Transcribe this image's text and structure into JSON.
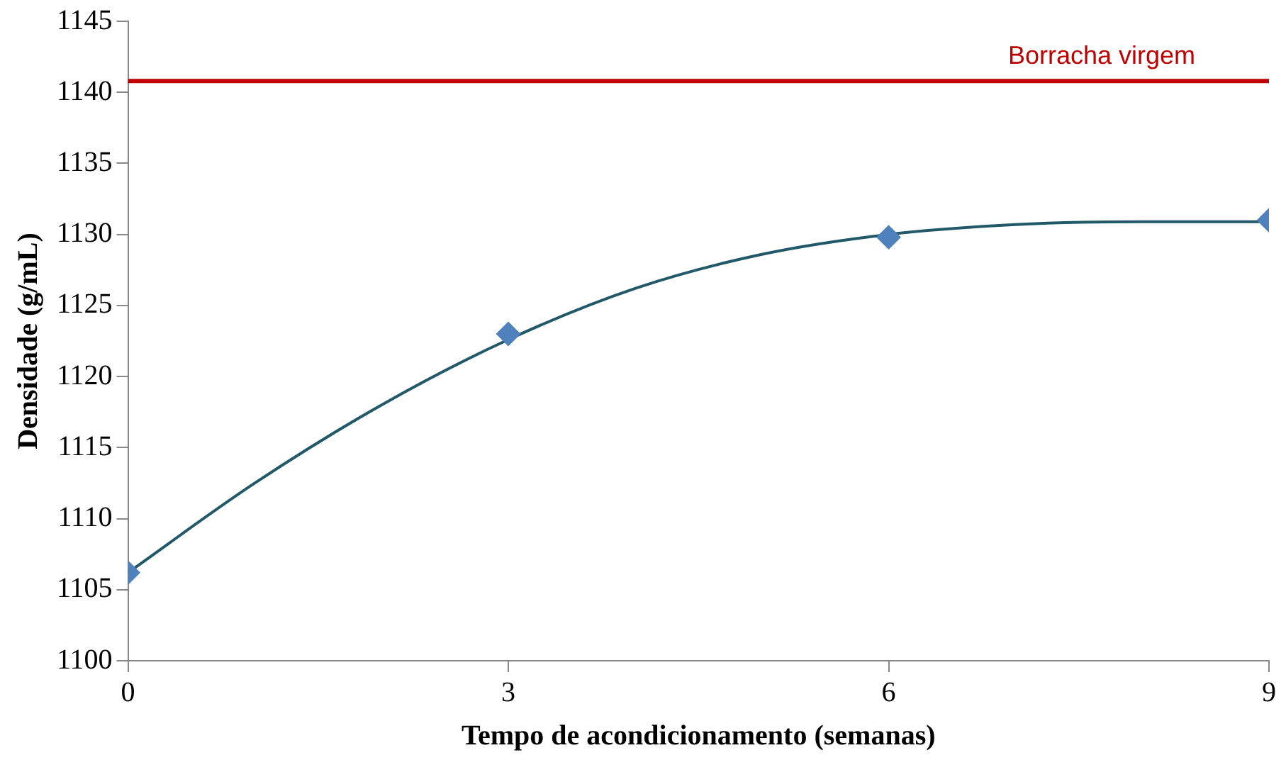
{
  "chart_data": {
    "type": "scatter",
    "xlabel": "Tempo de acondicionamento (semanas)",
    "ylabel": "Densidade (g/mL)",
    "x": [
      0,
      3,
      6,
      9
    ],
    "series": [
      {
        "type": "scatter",
        "color": "#4f81bd",
        "marker": "diamond",
        "values": [
          1106.2,
          1123,
          1129.8,
          1131
        ]
      },
      {
        "type": "line",
        "color": "#215968",
        "marker": "none",
        "x": [
          0,
          1,
          2,
          3,
          4,
          5,
          6,
          7,
          8,
          9
        ],
        "values": [
          1106.2,
          1112.5,
          1118,
          1122.6,
          1126.2,
          1128.6,
          1130,
          1130.7,
          1130.9,
          1130.9
        ]
      }
    ],
    "xlim": [
      0,
      9
    ],
    "xticks": [
      0,
      3,
      6,
      9
    ],
    "ylim": [
      1100,
      1145
    ],
    "yticks": [
      1100,
      1105,
      1110,
      1115,
      1120,
      1125,
      1130,
      1135,
      1140,
      1145
    ],
    "grid": false,
    "legend": false,
    "ref_lines": [
      {
        "axis": "y",
        "value": 1140.8,
        "label": "Borracha virgem",
        "color": "#c00000"
      }
    ]
  }
}
